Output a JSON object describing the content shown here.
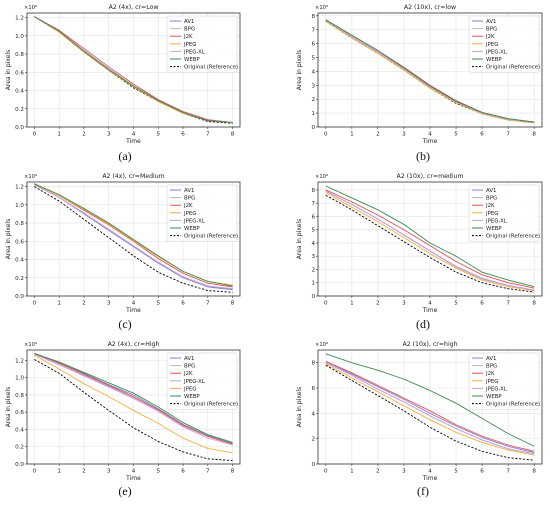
{
  "colors": {
    "AV1": "#7f7fd0",
    "BPG": "#b8b8b8",
    "J2K": "#e05050",
    "JPEG": "#f0b040",
    "JPEG-XL": "#c79be0",
    "WEBP": "#3d8a4d",
    "Original (Reference)": "#000000"
  },
  "chart_data": [
    {
      "id": "a",
      "type": "line",
      "title": "A2 (4x), cr=Low",
      "xlabel": "Time",
      "ylabel": "Area in pixels",
      "y_scale_label": "×10⁶",
      "sublabel": "(a)",
      "x": [
        0,
        1,
        2,
        3,
        4,
        5,
        6,
        7,
        8
      ],
      "xlim": [
        -0.3,
        8.3
      ],
      "ylim": [
        0,
        1.25
      ],
      "yticks": [
        0.0,
        0.2,
        0.4,
        0.6,
        0.8,
        1.0,
        1.2
      ],
      "ytick_labels": [
        "0.0",
        "0.2",
        "0.4",
        "0.6",
        "0.8",
        "1.0",
        "1.2"
      ],
      "xtick_labels": [
        "0",
        "1",
        "2",
        "3",
        "4",
        "5",
        "6",
        "7",
        "8"
      ],
      "legend_position": "top-right",
      "series": [
        {
          "name": "AV1",
          "values": [
            1.21,
            1.05,
            0.83,
            0.63,
            0.44,
            0.29,
            0.15,
            0.07,
            0.05
          ]
        },
        {
          "name": "BPG",
          "values": [
            1.21,
            1.05,
            0.84,
            0.64,
            0.45,
            0.29,
            0.16,
            0.07,
            0.05
          ]
        },
        {
          "name": "J2K",
          "values": [
            1.21,
            1.06,
            0.86,
            0.66,
            0.47,
            0.3,
            0.17,
            0.08,
            0.05
          ]
        },
        {
          "name": "JPEG",
          "values": [
            1.21,
            1.04,
            0.82,
            0.62,
            0.44,
            0.28,
            0.15,
            0.07,
            0.05
          ]
        },
        {
          "name": "JPEG-XL",
          "values": [
            1.21,
            1.05,
            0.84,
            0.64,
            0.45,
            0.29,
            0.16,
            0.07,
            0.05
          ]
        },
        {
          "name": "WEBP",
          "values": [
            1.21,
            1.05,
            0.83,
            0.63,
            0.45,
            0.29,
            0.16,
            0.07,
            0.05
          ]
        },
        {
          "name": "Original (Reference)",
          "values": [
            1.21,
            1.04,
            0.82,
            0.62,
            0.43,
            0.28,
            0.15,
            0.06,
            0.04
          ],
          "dashed": true
        }
      ]
    },
    {
      "id": "b",
      "type": "line",
      "title": "A2 (10x), cr=low",
      "xlabel": "Time",
      "ylabel": "Area in pixels",
      "y_scale_label": "×10⁶",
      "sublabel": "(b)",
      "x": [
        0,
        1,
        2,
        3,
        4,
        5,
        6,
        7,
        8
      ],
      "xlim": [
        -0.3,
        8.3
      ],
      "ylim": [
        0,
        8.2
      ],
      "yticks": [
        0,
        1,
        2,
        3,
        4,
        5,
        6,
        7,
        8
      ],
      "ytick_labels": [
        "0",
        "1",
        "2",
        "3",
        "4",
        "5",
        "6",
        "7",
        "8"
      ],
      "xtick_labels": [
        "0",
        "1",
        "2",
        "3",
        "4",
        "5",
        "6",
        "7",
        "8"
      ],
      "legend_position": "top-right",
      "series": [
        {
          "name": "AV1",
          "values": [
            7.7,
            6.5,
            5.4,
            4.2,
            2.9,
            1.8,
            1.0,
            0.55,
            0.35
          ]
        },
        {
          "name": "BPG",
          "values": [
            7.7,
            6.5,
            5.4,
            4.2,
            2.9,
            1.8,
            1.0,
            0.55,
            0.35
          ]
        },
        {
          "name": "J2K",
          "values": [
            7.7,
            6.6,
            5.5,
            4.3,
            3.0,
            1.9,
            1.05,
            0.6,
            0.35
          ]
        },
        {
          "name": "JPEG",
          "values": [
            7.6,
            6.4,
            5.3,
            4.1,
            2.8,
            1.75,
            0.95,
            0.5,
            0.3
          ]
        },
        {
          "name": "JPEG-XL",
          "values": [
            7.7,
            6.5,
            5.4,
            4.2,
            2.9,
            1.8,
            1.0,
            0.55,
            0.35
          ]
        },
        {
          "name": "WEBP",
          "values": [
            7.7,
            6.6,
            5.5,
            4.25,
            2.95,
            1.85,
            1.05,
            0.6,
            0.35
          ]
        },
        {
          "name": "Original (Reference)",
          "values": [
            7.6,
            6.4,
            5.3,
            4.1,
            2.8,
            1.7,
            0.95,
            0.5,
            0.3
          ],
          "dashed": true
        }
      ]
    },
    {
      "id": "c",
      "type": "line",
      "title": "A2 (4x), cr=Medium",
      "xlabel": "Time",
      "ylabel": "Area in pixels",
      "y_scale_label": "×10⁶",
      "sublabel": "(c)",
      "x": [
        0,
        1,
        2,
        3,
        4,
        5,
        6,
        7,
        8
      ],
      "xlim": [
        -0.3,
        8.3
      ],
      "ylim": [
        0,
        1.25
      ],
      "yticks": [
        0.0,
        0.2,
        0.4,
        0.6,
        0.8,
        1.0,
        1.2
      ],
      "ytick_labels": [
        "0.0",
        "0.2",
        "0.4",
        "0.6",
        "0.8",
        "1.0",
        "1.2"
      ],
      "xtick_labels": [
        "0",
        "1",
        "2",
        "3",
        "4",
        "5",
        "6",
        "7",
        "8"
      ],
      "legend_position": "top-right",
      "series": [
        {
          "name": "AV1",
          "values": [
            1.22,
            1.08,
            0.9,
            0.72,
            0.54,
            0.36,
            0.2,
            0.1,
            0.07
          ]
        },
        {
          "name": "BPG",
          "values": [
            1.22,
            1.08,
            0.91,
            0.73,
            0.55,
            0.37,
            0.21,
            0.11,
            0.08
          ]
        },
        {
          "name": "J2K",
          "values": [
            1.23,
            1.1,
            0.94,
            0.78,
            0.6,
            0.41,
            0.25,
            0.14,
            0.1
          ]
        },
        {
          "name": "JPEG",
          "values": [
            1.23,
            1.1,
            0.95,
            0.79,
            0.61,
            0.43,
            0.27,
            0.16,
            0.12
          ]
        },
        {
          "name": "JPEG-XL",
          "values": [
            1.22,
            1.08,
            0.91,
            0.73,
            0.55,
            0.37,
            0.21,
            0.11,
            0.08
          ]
        },
        {
          "name": "WEBP",
          "values": [
            1.23,
            1.11,
            0.96,
            0.8,
            0.62,
            0.44,
            0.27,
            0.16,
            0.11
          ]
        },
        {
          "name": "Original (Reference)",
          "values": [
            1.2,
            1.04,
            0.84,
            0.64,
            0.44,
            0.26,
            0.14,
            0.06,
            0.04
          ],
          "dashed": true
        }
      ]
    },
    {
      "id": "d",
      "type": "line",
      "title": "A2 (10x), cr=medium",
      "xlabel": "Time",
      "ylabel": "Area in pixels",
      "y_scale_label": "×10⁶",
      "sublabel": "(d)",
      "x": [
        0,
        1,
        2,
        3,
        4,
        5,
        6,
        7,
        8
      ],
      "xlim": [
        -0.3,
        8.3
      ],
      "ylim": [
        0,
        8.6
      ],
      "yticks": [
        0,
        1,
        2,
        3,
        4,
        5,
        6,
        7,
        8
      ],
      "ytick_labels": [
        "0",
        "1",
        "2",
        "3",
        "4",
        "5",
        "6",
        "7",
        "8"
      ],
      "xtick_labels": [
        "0",
        "1",
        "2",
        "3",
        "4",
        "5",
        "6",
        "7",
        "8"
      ],
      "legend_position": "top-right",
      "series": [
        {
          "name": "AV1",
          "values": [
            7.9,
            6.9,
            5.8,
            4.6,
            3.4,
            2.2,
            1.3,
            0.8,
            0.45
          ]
        },
        {
          "name": "BPG",
          "values": [
            7.9,
            6.9,
            5.8,
            4.6,
            3.4,
            2.25,
            1.35,
            0.8,
            0.45
          ]
        },
        {
          "name": "J2K",
          "values": [
            8.0,
            7.1,
            6.1,
            5.0,
            3.8,
            2.6,
            1.6,
            1.0,
            0.6
          ]
        },
        {
          "name": "JPEG",
          "values": [
            7.8,
            6.7,
            5.6,
            4.4,
            3.2,
            2.1,
            1.2,
            0.7,
            0.4
          ]
        },
        {
          "name": "JPEG-XL",
          "values": [
            7.9,
            6.9,
            5.8,
            4.6,
            3.4,
            2.2,
            1.3,
            0.8,
            0.45
          ]
        },
        {
          "name": "WEBP",
          "values": [
            8.3,
            7.4,
            6.5,
            5.4,
            4.0,
            3.0,
            1.8,
            1.2,
            0.7
          ]
        },
        {
          "name": "Original (Reference)",
          "values": [
            7.6,
            6.5,
            5.3,
            4.1,
            2.9,
            1.8,
            1.0,
            0.55,
            0.3
          ],
          "dashed": true
        }
      ]
    },
    {
      "id": "e",
      "type": "line",
      "title": "A2 (4x), cr=High",
      "xlabel": "Time",
      "ylabel": "Area in pixels",
      "y_scale_label": "×10⁶",
      "sublabel": "(e)",
      "x": [
        0,
        1,
        2,
        3,
        4,
        5,
        6,
        7,
        8
      ],
      "xlim": [
        -0.3,
        8.3
      ],
      "ylim": [
        0,
        1.32
      ],
      "yticks": [
        0.0,
        0.2,
        0.4,
        0.6,
        0.8,
        1.0,
        1.2
      ],
      "ytick_labels": [
        "0.0",
        "0.2",
        "0.4",
        "0.6",
        "0.8",
        "1.0",
        "1.2"
      ],
      "xtick_labels": [
        "0",
        "1",
        "2",
        "3",
        "4",
        "5",
        "6",
        "7",
        "8"
      ],
      "legend_position": "top-right",
      "series": [
        {
          "name": "AV1",
          "values": [
            1.28,
            1.17,
            1.05,
            0.92,
            0.8,
            0.64,
            0.46,
            0.33,
            0.24
          ]
        },
        {
          "name": "BPG",
          "values": [
            1.28,
            1.16,
            1.03,
            0.9,
            0.77,
            0.62,
            0.44,
            0.32,
            0.23
          ]
        },
        {
          "name": "J2K",
          "values": [
            1.28,
            1.17,
            1.04,
            0.91,
            0.78,
            0.63,
            0.45,
            0.32,
            0.23
          ]
        },
        {
          "name": "JPEG-XL",
          "values": [
            1.27,
            1.15,
            1.02,
            0.89,
            0.76,
            0.61,
            0.43,
            0.3,
            0.22
          ]
        },
        {
          "name": "JPEG",
          "values": [
            1.26,
            1.1,
            0.93,
            0.78,
            0.62,
            0.47,
            0.3,
            0.18,
            0.13
          ]
        },
        {
          "name": "WEBP",
          "values": [
            1.28,
            1.18,
            1.06,
            0.94,
            0.82,
            0.66,
            0.48,
            0.34,
            0.25
          ]
        },
        {
          "name": "Original (Reference)",
          "values": [
            1.21,
            1.05,
            0.83,
            0.62,
            0.42,
            0.26,
            0.14,
            0.06,
            0.04
          ],
          "dashed": true
        }
      ]
    },
    {
      "id": "f",
      "type": "line",
      "title": "A2 (10x), cr=high",
      "xlabel": "Time",
      "ylabel": "Area in pixels",
      "y_scale_label": "×10⁶",
      "sublabel": "(f)",
      "x": [
        0,
        1,
        2,
        3,
        4,
        5,
        6,
        7,
        8
      ],
      "xlim": [
        -0.3,
        8.3
      ],
      "ylim": [
        0,
        9.0
      ],
      "yticks": [
        0,
        2,
        4,
        6,
        8
      ],
      "ytick_labels": [
        "0",
        "2",
        "4",
        "6",
        "8"
      ],
      "xtick_labels": [
        "0",
        "1",
        "2",
        "3",
        "4",
        "5",
        "6",
        "7",
        "8"
      ],
      "legend_position": "top-right",
      "series": [
        {
          "name": "AV1",
          "values": [
            8.1,
            7.1,
            6.1,
            5.1,
            4.0,
            3.0,
            2.1,
            1.4,
            0.9
          ]
        },
        {
          "name": "BPG",
          "values": [
            8.0,
            7.0,
            5.9,
            4.9,
            3.8,
            2.8,
            1.9,
            1.2,
            0.8
          ]
        },
        {
          "name": "J2K",
          "values": [
            8.1,
            7.2,
            6.2,
            5.2,
            4.2,
            3.1,
            2.2,
            1.5,
            1.0
          ]
        },
        {
          "name": "JPEG",
          "values": [
            7.9,
            6.8,
            5.7,
            4.6,
            3.5,
            2.5,
            1.7,
            1.1,
            0.7
          ]
        },
        {
          "name": "JPEG-XL",
          "values": [
            8.0,
            7.0,
            5.9,
            4.9,
            3.8,
            2.8,
            1.9,
            1.2,
            0.8
          ]
        },
        {
          "name": "WEBP",
          "values": [
            8.7,
            8.0,
            7.4,
            6.7,
            5.8,
            4.8,
            3.6,
            2.4,
            1.4
          ]
        },
        {
          "name": "Original (Reference)",
          "values": [
            7.8,
            6.6,
            5.4,
            4.2,
            2.9,
            1.8,
            1.0,
            0.5,
            0.3
          ],
          "dashed": true
        }
      ]
    }
  ]
}
